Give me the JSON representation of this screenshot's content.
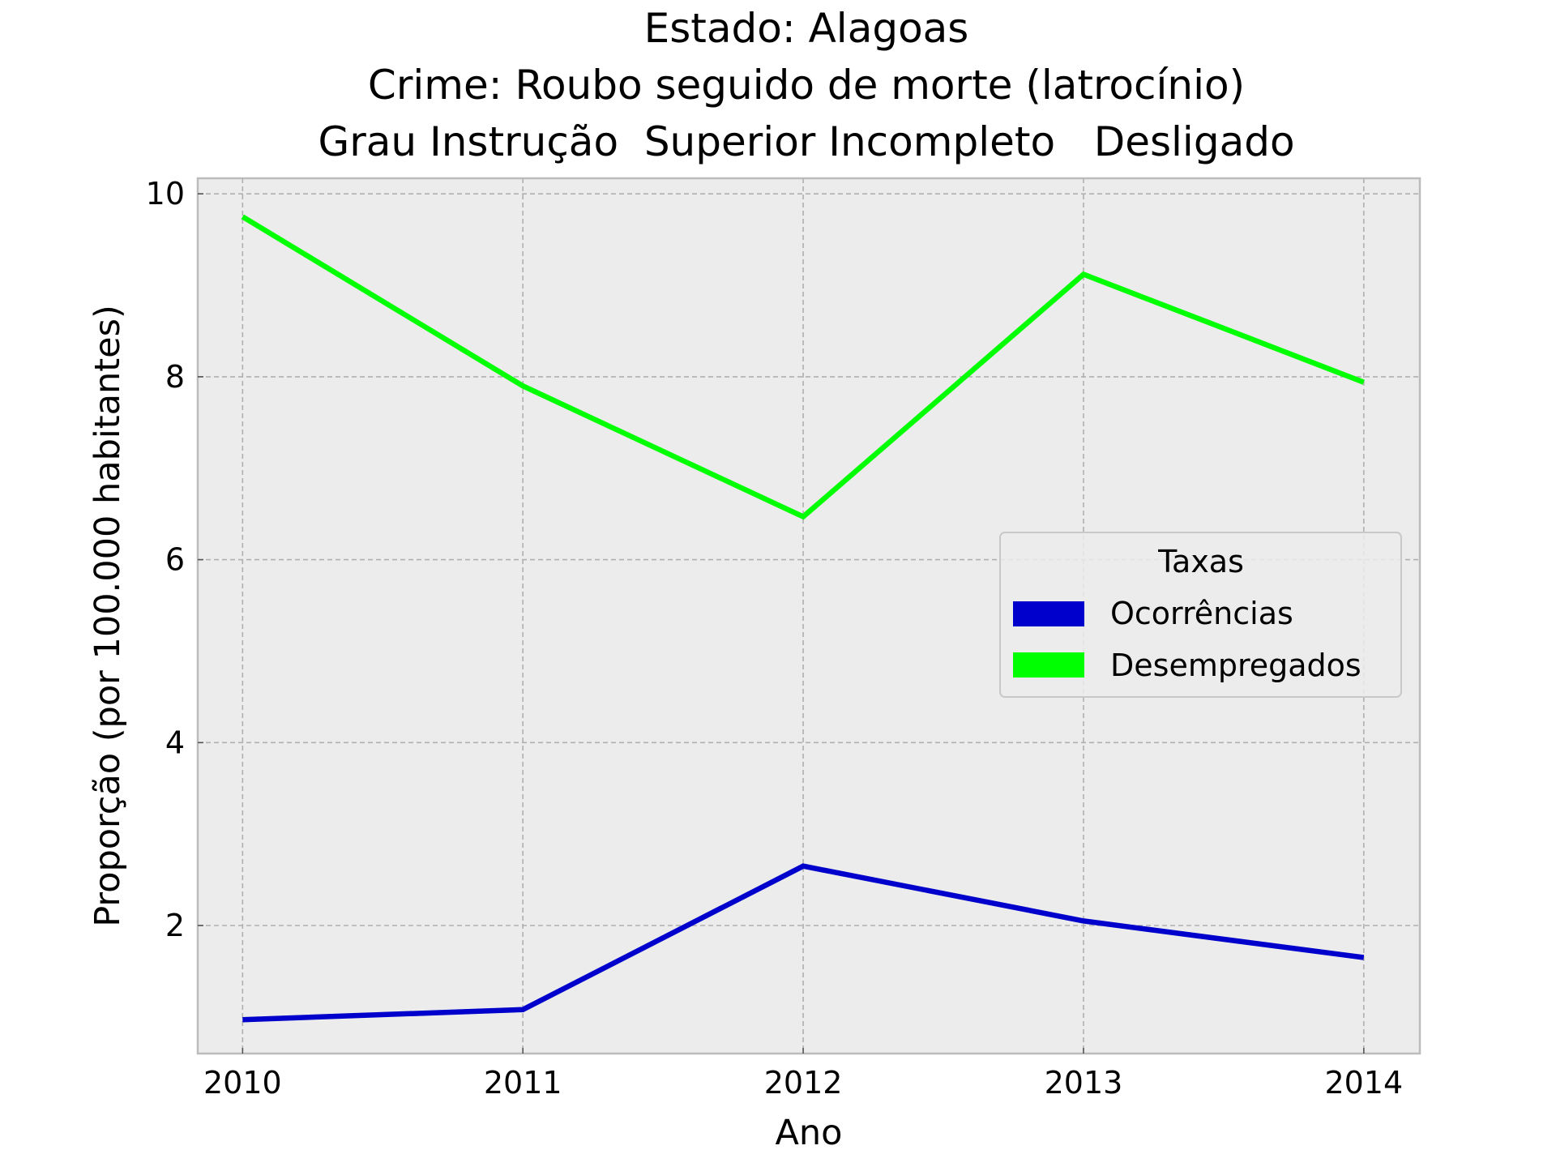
{
  "chart_data": {
    "type": "line",
    "title_lines": [
      "Estado: Alagoas",
      "Crime: Roubo seguido de morte (latrocínio)",
      "Grau Instrução  Superior Incompleto   Desligado"
    ],
    "xlabel": "Ano",
    "ylabel": "Proporção (por 100.000 habitantes)",
    "x": [
      2010,
      2011,
      2012,
      2013,
      2014
    ],
    "x_tick_labels": [
      "2010",
      "2011",
      "2012",
      "2013",
      "2014"
    ],
    "y_ticks": [
      2,
      4,
      6,
      8,
      10
    ],
    "y_tick_labels": [
      "2",
      "4",
      "6",
      "8",
      "10"
    ],
    "xlim": [
      2009.84,
      2014.2
    ],
    "ylim": [
      0.6,
      10.17
    ],
    "grid": true,
    "legend": {
      "title": "Taxas",
      "position": "right",
      "entries": [
        "Ocorrências",
        "Desempregados"
      ]
    },
    "series": [
      {
        "name": "Ocorrências",
        "color": "#0000cc",
        "values": [
          0.97,
          1.08,
          2.65,
          2.05,
          1.65
        ]
      },
      {
        "name": "Desempregados",
        "color": "#00ff00",
        "values": [
          9.75,
          7.9,
          6.47,
          9.12,
          7.94
        ]
      }
    ]
  }
}
